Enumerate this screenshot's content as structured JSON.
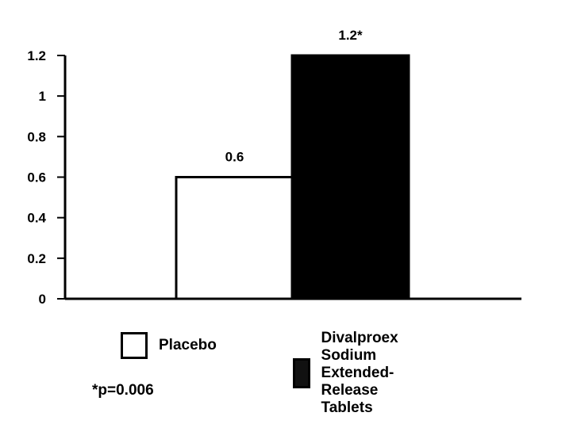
{
  "chart_data": {
    "type": "bar",
    "title": "",
    "xlabel": "",
    "ylabel": "",
    "ylim": [
      0,
      1.2
    ],
    "yticks": [
      "0",
      "0.2",
      "0.4",
      "0.6",
      "0.8",
      "1",
      "1.2"
    ],
    "grid": false,
    "legend": "bottom",
    "series": [
      {
        "name": "Placebo",
        "value": 0.6,
        "label": "0.6",
        "color": "#ffffff"
      },
      {
        "name": "Divalproex Sodium Extended-Release Tablets",
        "value": 1.2,
        "label": "1.2*",
        "color": "#000000"
      }
    ]
  },
  "legend": {
    "placebo": "Placebo",
    "divalproex_line1": "Divalproex Sodium",
    "divalproex_line2": "Extended-Release Tablets"
  },
  "footnote": "*p=0.006"
}
